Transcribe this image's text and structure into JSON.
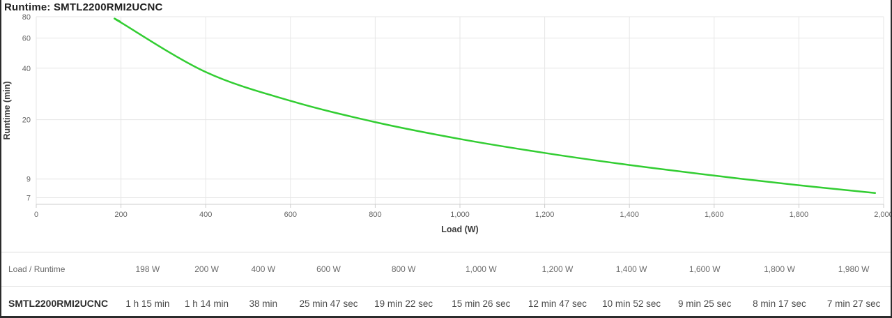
{
  "page": {
    "title": "Runtime: SMTL2200RMI2UCNC"
  },
  "chart_data": {
    "type": "line",
    "title": "Runtime: SMTL2200RMI2UCNC",
    "xlabel": "Load (W)",
    "ylabel": "Runtime (min)",
    "x_scale": "linear",
    "y_scale": "log",
    "xlim": [
      0,
      2000
    ],
    "ylim": [
      6.4,
      80
    ],
    "grid": true,
    "legend": "none",
    "x_tick_values": [
      0,
      200,
      400,
      600,
      800,
      1000,
      1200,
      1400,
      1600,
      1800,
      2000
    ],
    "x_tick_labels": [
      "0",
      "200",
      "400",
      "600",
      "800",
      "1,000",
      "1,200",
      "1,400",
      "1,600",
      "1,800",
      "2,000"
    ],
    "y_tick_values": [
      80,
      60,
      40,
      20,
      9,
      7
    ],
    "y_tick_labels": [
      "80",
      "60",
      "40",
      "20",
      "9",
      "7"
    ],
    "line_color": "#32cd32",
    "grid_color": "#e6e6e6",
    "axis_line_color": "#cccccc",
    "series": [
      {
        "name": "SMTL2200RMI2UCNC",
        "points": [
          [
            198,
            75
          ],
          [
            200,
            74
          ],
          [
            400,
            38
          ],
          [
            600,
            25.78
          ],
          [
            800,
            19.37
          ],
          [
            1000,
            15.43
          ],
          [
            1200,
            12.78
          ],
          [
            1400,
            10.87
          ],
          [
            1600,
            9.42
          ],
          [
            1800,
            8.28
          ],
          [
            1980,
            7.45
          ]
        ]
      }
    ]
  },
  "table": {
    "header": [
      "Load / Runtime",
      "198 W",
      "200 W",
      "400 W",
      "600 W",
      "800 W",
      "1,000 W",
      "1,200 W",
      "1,400 W",
      "1,600 W",
      "1,800 W",
      "1,980 W"
    ],
    "rows": [
      [
        "SMTL2200RMI2UCNC",
        "1 h 15 min",
        "1 h 14 min",
        "38 min",
        "25 min 47 sec",
        "19 min 22 sec",
        "15 min 26 sec",
        "12 min 47 sec",
        "10 min 52 sec",
        "9 min 25 sec",
        "8 min 17 sec",
        "7 min 27 sec"
      ]
    ]
  }
}
